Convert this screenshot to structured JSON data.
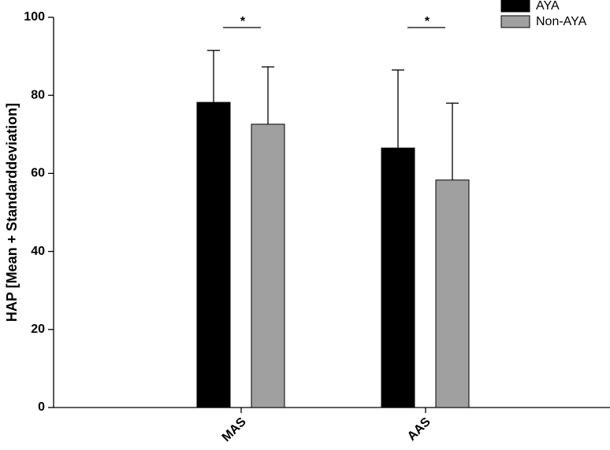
{
  "chart_data": {
    "type": "bar",
    "ylabel": "HAP [Mean + Standarddeviation]",
    "categories": [
      "MAS",
      "AAS"
    ],
    "series": [
      {
        "name": "AYA",
        "color": "#000000",
        "values": [
          78.2,
          66.5
        ],
        "errors": [
          13.3,
          20.0
        ]
      },
      {
        "name": "Non-AYA",
        "color": "#a0a0a0",
        "values": [
          72.6,
          58.3
        ],
        "errors": [
          14.7,
          19.7
        ]
      }
    ],
    "annotations": [
      "*",
      "*"
    ],
    "ylim": [
      0,
      100
    ],
    "yticks": [
      0,
      20,
      40,
      60,
      80,
      100
    ],
    "legend": "upper right",
    "grid": false
  }
}
